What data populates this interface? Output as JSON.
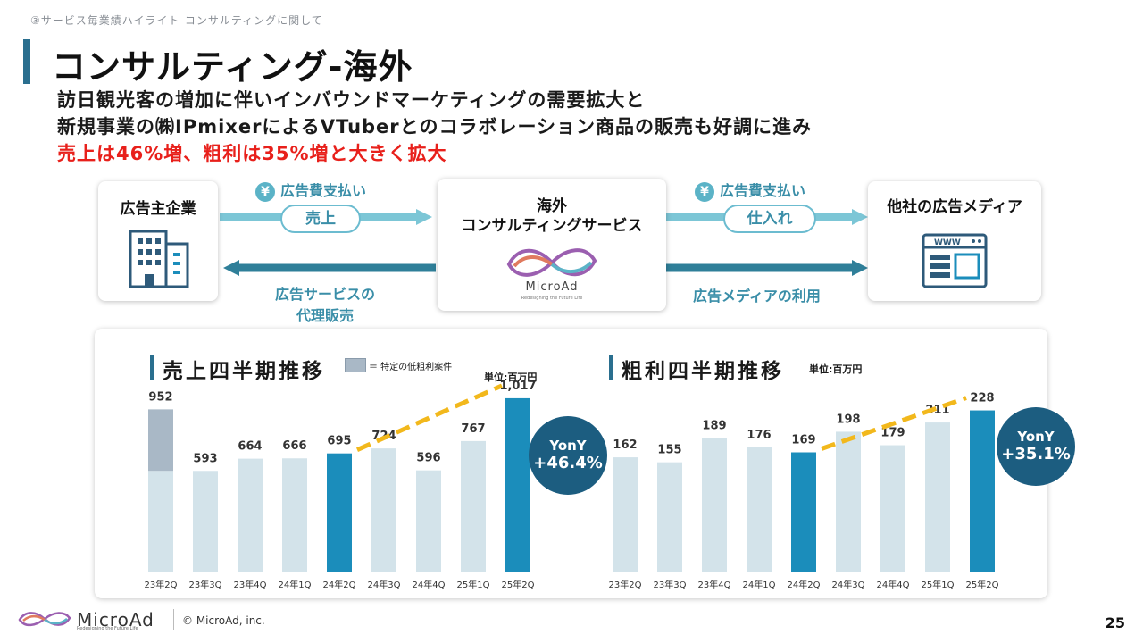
{
  "breadcrumb": "③サービス毎業績ハイライト-コンサルティングに関して",
  "title": "コンサルティング-海外",
  "lead": {
    "line1": "訪日観光客の増加に伴いインバウンドマーケティングの需要拡大と",
    "line2": "新規事業の㈱IPmixerによるVTuberとのコラボレーション商品の販売も好調に進み",
    "line3": "売上は46%増、粗利は35%増と大きく拡大"
  },
  "flow": {
    "advertiser": "広告主企業",
    "center_line1": "海外",
    "center_line2": "コンサルティングサービス",
    "center_logo": "MicroAd",
    "center_logo_sub": "Redesigning the Future Life",
    "media": "他社の広告メディア",
    "yen_symbol": "¥",
    "pay_label_left": "広告費支払い",
    "pay_label_right": "広告費支払い",
    "pill_left": "売上",
    "pill_right": "仕入れ",
    "service_line1": "広告サービスの",
    "service_line2": "代理販売",
    "media_use": "広告メディアの利用",
    "web_label": "WWW"
  },
  "colors": {
    "accent": "#2a6f8f",
    "highlight_bar": "#1b8dbb",
    "light_bar": "#d3e3ea",
    "special_bar": "#a9b8c6",
    "yony": "#1c5d80",
    "arrow": "#f2b81c",
    "red": "#e8201b"
  },
  "chart_data": [
    {
      "type": "bar",
      "title": "売上四半期推移",
      "unit": "単位:百万円",
      "legend_label": "＝ 特定の低粗利案件",
      "categories": [
        "23年2Q",
        "23年3Q",
        "23年4Q",
        "24年1Q",
        "24年2Q",
        "24年3Q",
        "24年4Q",
        "25年1Q",
        "25年2Q"
      ],
      "values": [
        952,
        593,
        664,
        666,
        695,
        724,
        596,
        767,
        1017
      ],
      "value_labels": [
        "952",
        "593",
        "664",
        "666",
        "695",
        "724",
        "596",
        "767",
        "1,017"
      ],
      "special_low_margin": [
        {
          "category": "23年2Q",
          "value": 952
        }
      ],
      "highlight": [
        "24年2Q",
        "25年2Q"
      ],
      "yony_l1": "YonY",
      "yony_l2": "+46.4%",
      "ylim": [
        0,
        1100
      ]
    },
    {
      "type": "bar",
      "title": "粗利四半期推移",
      "unit": "単位:百万円",
      "categories": [
        "23年2Q",
        "23年3Q",
        "23年4Q",
        "24年1Q",
        "24年2Q",
        "24年3Q",
        "24年4Q",
        "25年1Q",
        "25年2Q"
      ],
      "values": [
        162,
        155,
        189,
        176,
        169,
        198,
        179,
        211,
        228
      ],
      "value_labels": [
        "162",
        "155",
        "189",
        "176",
        "169",
        "198",
        "179",
        "211",
        "228"
      ],
      "highlight": [
        "24年2Q",
        "25年2Q"
      ],
      "yony_l1": "YonY",
      "yony_l2": "+35.1%",
      "ylim": [
        0,
        240
      ]
    }
  ],
  "footer": {
    "logo": "MicroAd",
    "logo_sub": "Redesigning the Future Life",
    "copyright": "© MicroAd, inc.",
    "page": "25"
  }
}
